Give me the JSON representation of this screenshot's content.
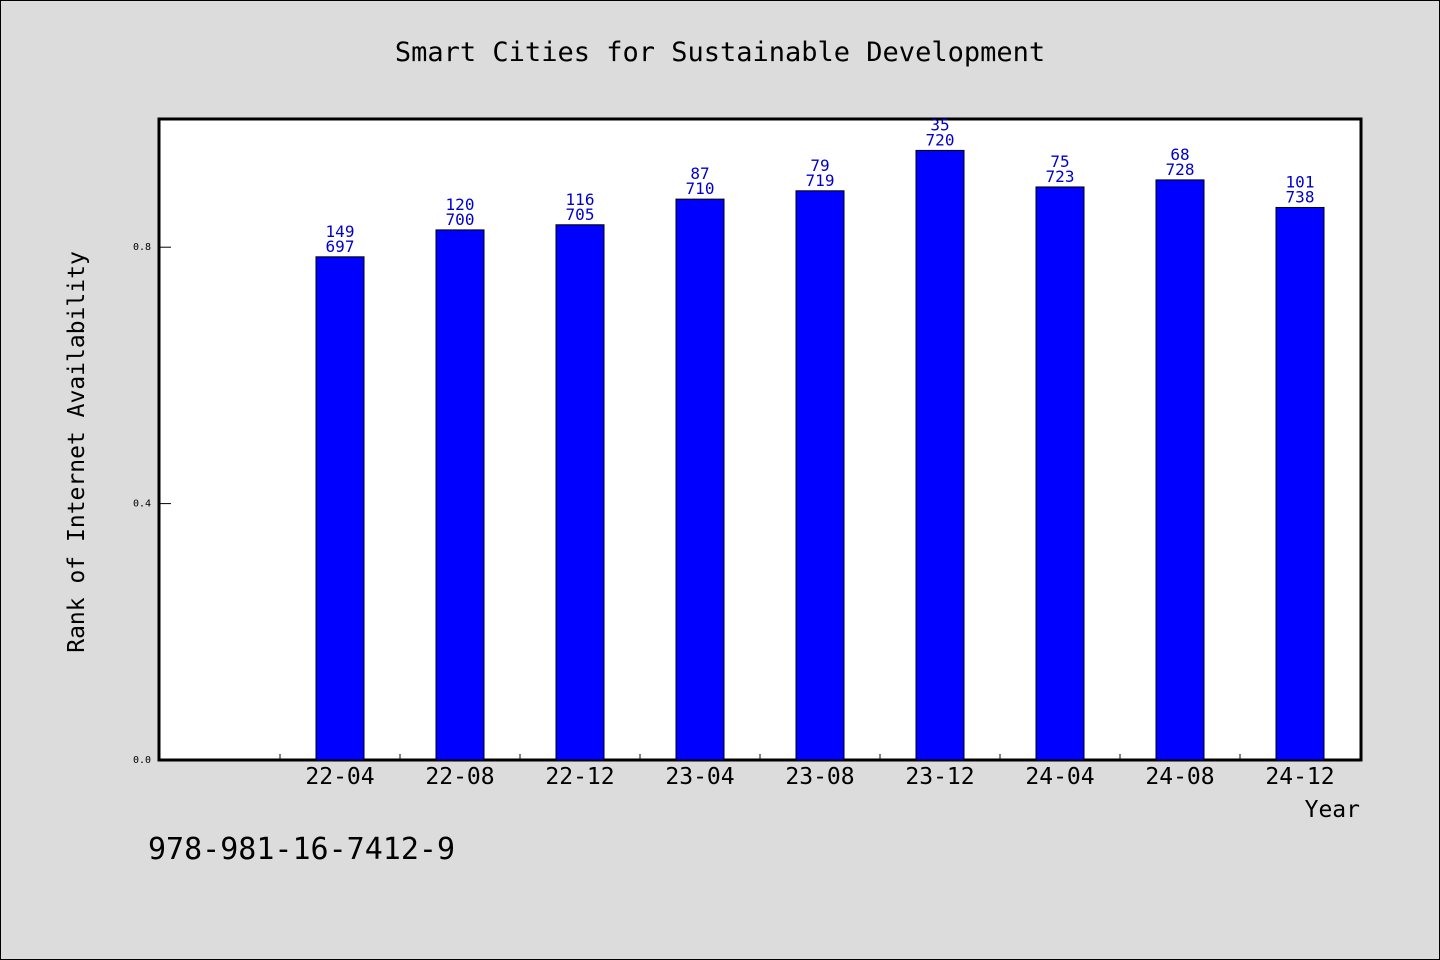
{
  "footer_code": "978-981-16-7412-9",
  "colors": {
    "bar": "#0000ff",
    "label": "#0000cc",
    "background": "#dcdcdc",
    "plot_bg": "#ffffff"
  },
  "chart_data": {
    "type": "bar",
    "title": "Smart Cities for Sustainable Development",
    "xlabel": "Year",
    "ylabel": "Rank of Internet Availability",
    "ylim": [
      0.0,
      1.0
    ],
    "yticks": [
      0.0,
      0.4,
      0.8
    ],
    "ytick_labels": [
      "0.0",
      "0.4",
      "0.8"
    ],
    "categories": [
      "22-04",
      "22-08",
      "22-12",
      "23-04",
      "23-08",
      "23-12",
      "24-04",
      "24-08",
      "24-12"
    ],
    "values": [
      0.785,
      0.827,
      0.835,
      0.875,
      0.888,
      0.951,
      0.894,
      0.905,
      0.862
    ],
    "bar_labels_top": [
      "149",
      "120",
      "116",
      "87",
      "79",
      "35",
      "75",
      "68",
      "101"
    ],
    "bar_labels_bottom": [
      "697",
      "700",
      "705",
      "710",
      "719",
      "720",
      "723",
      "728",
      "738"
    ],
    "grid": false,
    "legend": "none"
  }
}
